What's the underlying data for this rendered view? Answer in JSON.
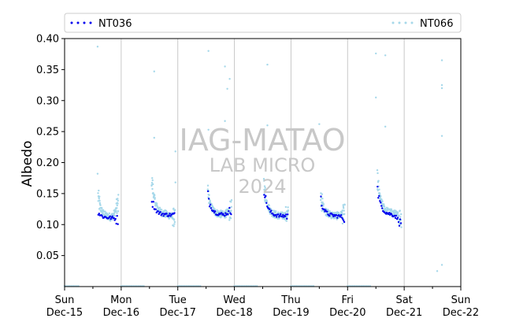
{
  "chart_data": {
    "type": "scatter",
    "ylabel": "Albedo",
    "xlabel": "",
    "ylim": [
      0,
      0.4
    ],
    "xlim": [
      "2024-12-15",
      "2024-12-22"
    ],
    "yticks": [
      "0.05",
      "0.10",
      "0.15",
      "0.20",
      "0.25",
      "0.30",
      "0.35",
      "0.40"
    ],
    "xticks": [
      {
        "day": "Sun",
        "date": "Dec-15"
      },
      {
        "day": "Mon",
        "date": "Dec-16"
      },
      {
        "day": "Tue",
        "date": "Dec-17"
      },
      {
        "day": "Wed",
        "date": "Dec-18"
      },
      {
        "day": "Thu",
        "date": "Dec-19"
      },
      {
        "day": "Fri",
        "date": "Dec-20"
      },
      {
        "day": "Sat",
        "date": "Dec-21"
      },
      {
        "day": "Sun",
        "date": "Dec-22"
      }
    ],
    "grid": "vertical at midnight",
    "legend_position": "top",
    "series": [
      {
        "name": "NT036",
        "color": "#0000ee",
        "marker": "dot",
        "daily_profile": [
          {
            "date": "2024-12-15",
            "start_hour": 14.3,
            "end_hour": 22.6,
            "start_value": 0.12,
            "mid_value": 0.111,
            "end_value": 0.107
          },
          {
            "date": "2024-12-16",
            "start_hour": 13.0,
            "end_hour": 22.6,
            "start_value": 0.14,
            "mid_value": 0.116,
            "end_value": 0.115
          },
          {
            "date": "2024-12-17",
            "start_hour": 12.8,
            "end_hour": 22.6,
            "start_value": 0.148,
            "mid_value": 0.116,
            "end_value": 0.123
          },
          {
            "date": "2024-12-18",
            "start_hour": 12.6,
            "end_hour": 22.6,
            "start_value": 0.155,
            "mid_value": 0.114,
            "end_value": 0.114
          },
          {
            "date": "2024-12-19",
            "start_hour": 12.7,
            "end_hour": 22.6,
            "start_value": 0.14,
            "mid_value": 0.114,
            "end_value": 0.111
          },
          {
            "date": "2024-12-20",
            "start_hour": 12.7,
            "end_hour": 22.6,
            "start_value": 0.157,
            "mid_value": 0.116,
            "end_value": 0.1
          }
        ]
      },
      {
        "name": "NT066",
        "color": "#a6d8ea",
        "marker": "dot",
        "daily_profile": [
          {
            "date": "2024-12-15",
            "start_hour": 14.2,
            "end_hour": 22.8,
            "start_value": 0.146,
            "mid_value": 0.112,
            "end_value": 0.135
          },
          {
            "date": "2024-12-16",
            "start_hour": 12.9,
            "end_hour": 22.8,
            "start_value": 0.175,
            "mid_value": 0.116,
            "end_value": 0.11
          },
          {
            "date": "2024-12-17",
            "start_hour": 12.7,
            "end_hour": 22.8,
            "start_value": 0.15,
            "mid_value": 0.116,
            "end_value": 0.125
          },
          {
            "date": "2024-12-18",
            "start_hour": 12.5,
            "end_hour": 22.8,
            "start_value": 0.165,
            "mid_value": 0.114,
            "end_value": 0.115
          },
          {
            "date": "2024-12-19",
            "start_hour": 12.6,
            "end_hour": 22.8,
            "start_value": 0.145,
            "mid_value": 0.114,
            "end_value": 0.118
          },
          {
            "date": "2024-12-20",
            "start_hour": 12.6,
            "end_hour": 22.8,
            "start_value": 0.175,
            "mid_value": 0.118,
            "end_value": 0.11
          }
        ],
        "outliers": [
          [
            "2024-12-15 14:00",
            0.387
          ],
          [
            "2024-12-15 14:00",
            0.182
          ],
          [
            "2024-12-16 14:00",
            0.347
          ],
          [
            "2024-12-16 14:00",
            0.24
          ],
          [
            "2024-12-16 23:00",
            0.218
          ],
          [
            "2024-12-16 23:00",
            0.168
          ],
          [
            "2024-12-17 13:00",
            0.38
          ],
          [
            "2024-12-17 13:00",
            0.253
          ],
          [
            "2024-12-17 20:00",
            0.355
          ],
          [
            "2024-12-17 21:00",
            0.319
          ],
          [
            "2024-12-17 22:00",
            0.335
          ],
          [
            "2024-12-17 20:00",
            0.267
          ],
          [
            "2024-12-18 14:00",
            0.358
          ],
          [
            "2024-12-18 14:00",
            0.26
          ],
          [
            "2024-12-19 12:00",
            0.262
          ],
          [
            "2024-12-20 12:00",
            0.376
          ],
          [
            "2024-12-20 12:00",
            0.305
          ],
          [
            "2024-12-20 16:00",
            0.373
          ],
          [
            "2024-12-20 16:00",
            0.258
          ],
          [
            "2024-12-21 16:00",
            0.365
          ],
          [
            "2024-12-21 16:00",
            0.325
          ],
          [
            "2024-12-21 16:00",
            0.32
          ],
          [
            "2024-12-21 16:00",
            0.243
          ],
          [
            "2024-12-21 16:00",
            0.035
          ],
          [
            "2024-12-21 14:00",
            0.025
          ]
        ]
      }
    ],
    "baseline_markers": {
      "value": 0.0,
      "color": "#a6d8ea",
      "segments": [
        [
          "2024-12-15 00:00",
          "2024-12-15 06:00"
        ],
        [
          "2024-12-16 00:00",
          "2024-12-16 10:00"
        ],
        [
          "2024-12-17 00:00",
          "2024-12-17 10:00"
        ],
        [
          "2024-12-18 00:00",
          "2024-12-18 10:00"
        ],
        [
          "2024-12-19 00:00",
          "2024-12-19 10:00"
        ],
        [
          "2024-12-20 00:00",
          "2024-12-20 10:00"
        ]
      ]
    }
  },
  "watermark": {
    "line1": "IAG-MATAO",
    "line2": "LAB MICRO",
    "line3": "2024"
  },
  "colors": {
    "grid": "#c8c8c8",
    "axis": "#000000",
    "nt036": "#0000ee",
    "nt066": "#a6d8ea"
  }
}
